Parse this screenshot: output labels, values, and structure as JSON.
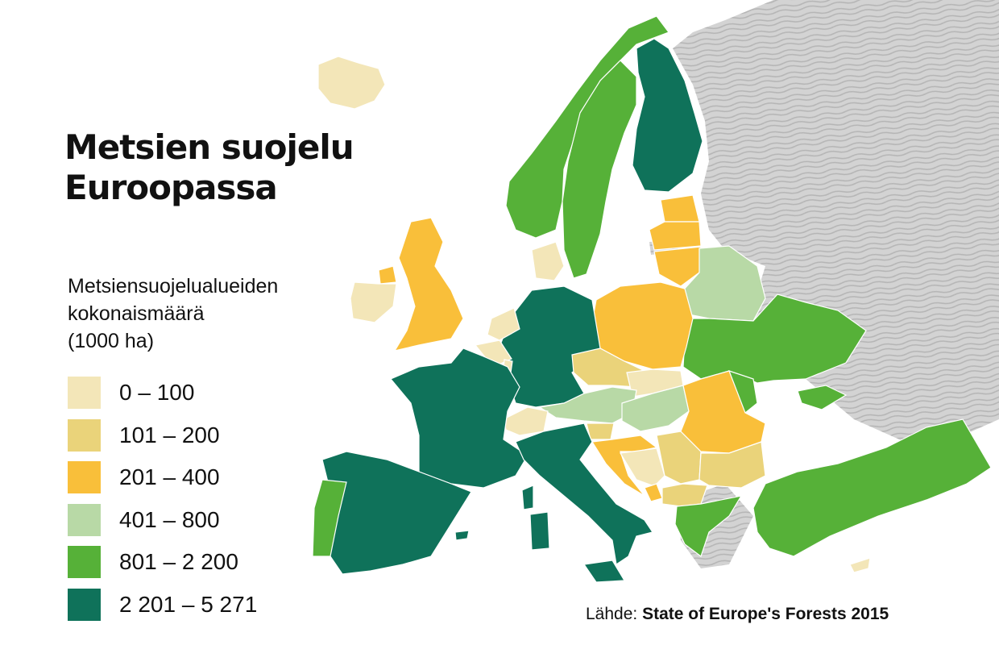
{
  "title": {
    "line1": "Metsien suojelu",
    "line2": "Euroopassa"
  },
  "legend": {
    "heading_lines": [
      "Metsiensuojelualueiden",
      "kokonaismäärä",
      "(1000 ha)"
    ],
    "items": [
      {
        "label": "0 – 100",
        "color": "#f3e6b8"
      },
      {
        "label": "101 – 200",
        "color": "#ead37a"
      },
      {
        "label": "201 – 400",
        "color": "#f9bf3a"
      },
      {
        "label": "401 – 800",
        "color": "#b8d9a6"
      },
      {
        "label": "801 – 2 200",
        "color": "#56b138"
      },
      {
        "label": "2 201 – 5 271",
        "color": "#0f725a"
      }
    ]
  },
  "source": {
    "prefix": "Lähde:",
    "name": "State of Europe's Forests 2015"
  },
  "colors": {
    "no_data_hatch": "#c4c4c4",
    "border": "#ffffff",
    "text": "#111111"
  }
}
